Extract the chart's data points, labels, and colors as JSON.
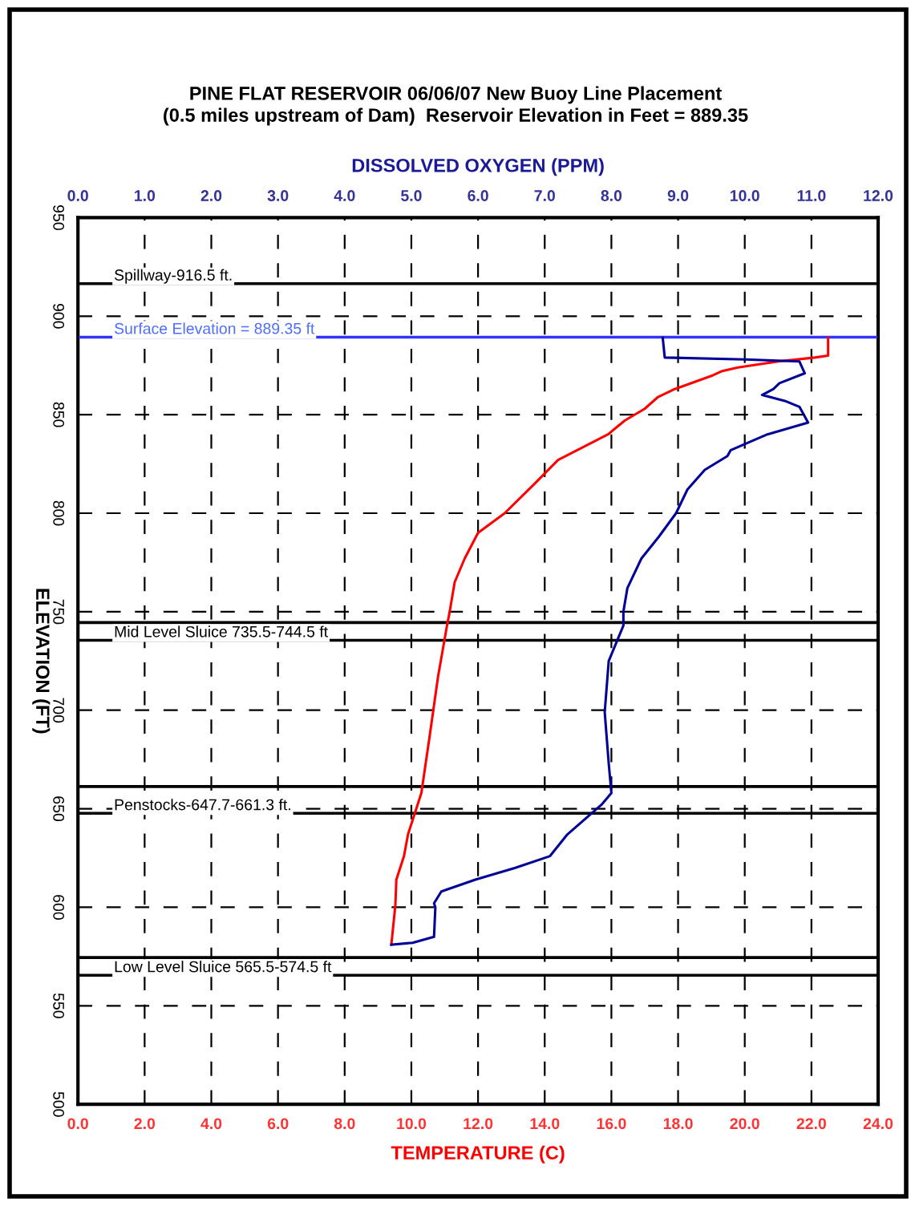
{
  "chart_data": {
    "type": "line",
    "title": "PINE FLAT RESERVOIR 06/06/07 New Buoy Line Placement\n(0.5 miles upstream of Dam)  Reservoir Elevation in Feet = 889.35",
    "xlabel": "TEMPERATURE (C)",
    "x2label": "DISSOLVED OXYGEN (PPM)",
    "ylabel": "ELEVATION (FT)",
    "xlim": [
      0,
      24
    ],
    "xticks": [
      {
        "value": 0,
        "label": "0.0"
      },
      {
        "value": 2,
        "label": "2.0"
      },
      {
        "value": 4,
        "label": "4.0"
      },
      {
        "value": 6,
        "label": "6.0"
      },
      {
        "value": 8,
        "label": "8.0"
      },
      {
        "value": 10,
        "label": "10.0"
      },
      {
        "value": 12,
        "label": "12.0"
      },
      {
        "value": 14,
        "label": "14.0"
      },
      {
        "value": 16,
        "label": "16.0"
      },
      {
        "value": 18,
        "label": "18.0"
      },
      {
        "value": 20,
        "label": "20.0"
      },
      {
        "value": 22,
        "label": "22.0"
      },
      {
        "value": 24,
        "label": "24.0"
      }
    ],
    "x2lim": [
      0,
      12
    ],
    "x2ticks": [
      {
        "value": 0,
        "label": "0.0"
      },
      {
        "value": 1,
        "label": "1.0"
      },
      {
        "value": 2,
        "label": "2.0"
      },
      {
        "value": 3,
        "label": "3.0"
      },
      {
        "value": 4,
        "label": "4.0"
      },
      {
        "value": 5,
        "label": "5.0"
      },
      {
        "value": 6,
        "label": "6.0"
      },
      {
        "value": 7,
        "label": "7.0"
      },
      {
        "value": 8,
        "label": "8.0"
      },
      {
        "value": 9,
        "label": "9.0"
      },
      {
        "value": 10,
        "label": "10.0"
      },
      {
        "value": 11,
        "label": "11.0"
      },
      {
        "value": 12,
        "label": "12.0"
      }
    ],
    "ylim": [
      500,
      950
    ],
    "yticks": [
      500,
      550,
      600,
      650,
      700,
      750,
      800,
      850,
      900,
      950
    ],
    "grid": true,
    "line_style": "solid",
    "marker": "none",
    "series": [
      {
        "color": "#ff0000",
        "x": [
          22.5,
          22.5,
          22.1,
          21.0,
          19.8,
          19.3,
          19.05,
          17.9,
          17.4,
          17.0,
          16.4,
          15.9,
          14.4,
          13.7,
          12.8,
          12.0,
          11.6,
          11.3,
          11.15,
          11.07,
          10.8,
          10.55,
          10.3,
          9.9,
          9.78,
          9.55,
          9.52,
          9.4
        ],
        "values": [
          889,
          880,
          879,
          877,
          874,
          872,
          870,
          863,
          859,
          853,
          847,
          840,
          827,
          815,
          800,
          790,
          777,
          765,
          750,
          743,
          717,
          687,
          658,
          637,
          626,
          614,
          601,
          581
        ]
      },
      {
        "color": "#000099",
        "axis": "x2",
        "x": [
          8.77,
          8.8,
          10.0,
          10.82,
          10.9,
          10.52,
          10.43,
          10.26,
          10.6,
          10.82,
          10.95,
          10.34,
          9.79,
          9.74,
          9.4,
          9.14,
          8.97,
          8.71,
          8.45,
          8.24,
          8.18,
          8.18,
          7.96,
          7.9,
          7.96,
          8.0,
          7.85,
          7.34,
          7.08,
          6.56,
          5.96,
          5.45,
          5.34,
          5.36,
          5.34,
          5.02,
          4.7
        ],
        "values": [
          889,
          879,
          878,
          877,
          871,
          866,
          863,
          860,
          857,
          854,
          846,
          840,
          832,
          829,
          822,
          812,
          800,
          788,
          777,
          762,
          750,
          743,
          725,
          699,
          673,
          658,
          652,
          637,
          626,
          620,
          614,
          608,
          602,
          600,
          585,
          582,
          581
        ]
      }
    ],
    "ref_lines": [
      {
        "axis": "y",
        "value": 916.5,
        "label": "Spillway-916.5 ft."
      },
      {
        "axis": "y",
        "value": 889.35,
        "label": "Surface Elevation = 889.35 ft",
        "color": "#3333ff"
      },
      {
        "axis": "y",
        "value": 744.5
      },
      {
        "axis": "y",
        "value": 735.5,
        "label": "Mid Level Sluice 735.5-744.5 ft"
      },
      {
        "axis": "y",
        "value": 661.3
      },
      {
        "axis": "y",
        "value": 647.7,
        "label": "Penstocks-647.7-661.3 ft."
      },
      {
        "axis": "y",
        "value": 574.5
      },
      {
        "axis": "y",
        "value": 565.5,
        "label": "Low Level Sluice 565.5-574.5 ft"
      }
    ]
  }
}
